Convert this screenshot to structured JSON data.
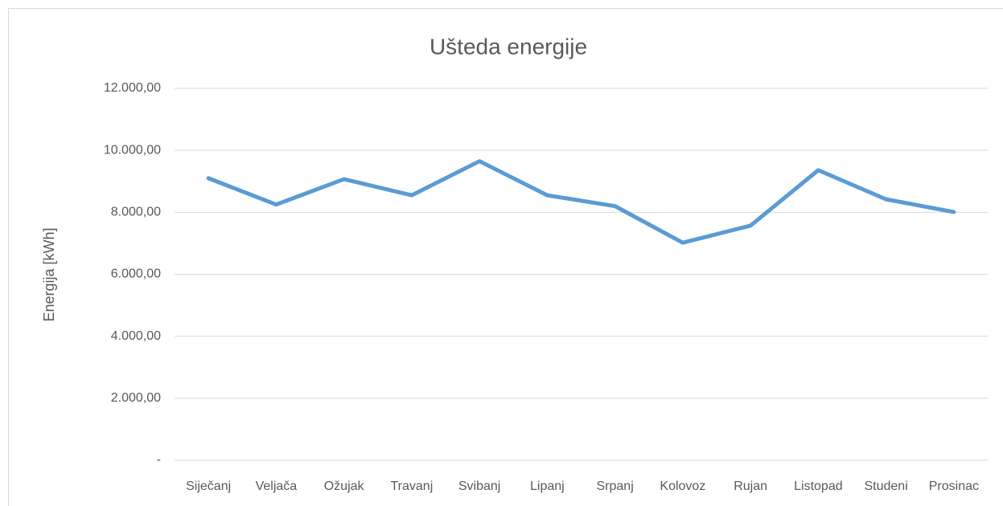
{
  "chart_data": {
    "type": "line",
    "title": "Ušteda energije",
    "y_label": "Energija [kWh]",
    "categories": [
      "Siječanj",
      "Veljača",
      "Ožujak",
      "Travanj",
      "Svibanj",
      "Lipanj",
      "Srpanj",
      "Kolovoz",
      "Rujan",
      "Listopad",
      "Studeni",
      "Prosinac"
    ],
    "values": [
      9100,
      8250,
      9070,
      8550,
      9650,
      8550,
      8200,
      7020,
      7570,
      9360,
      8420,
      8010
    ],
    "color": "#5b9bd5",
    "ylim": [
      0,
      12000
    ],
    "yticks": [
      {
        "value": 0,
        "label": "-"
      },
      {
        "value": 2000,
        "label": "2.000,00"
      },
      {
        "value": 4000,
        "label": "4.000,00"
      },
      {
        "value": 6000,
        "label": "6.000,00"
      },
      {
        "value": 8000,
        "label": "8.000,00"
      },
      {
        "value": 10000,
        "label": "10.000,00"
      },
      {
        "value": 12000,
        "label": "12.000,00"
      }
    ],
    "grid": true
  }
}
